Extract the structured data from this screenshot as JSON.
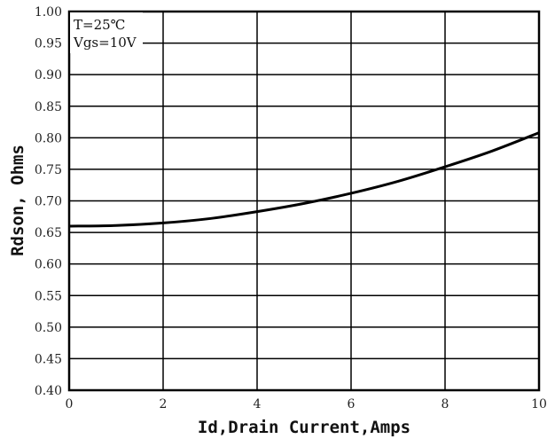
{
  "chart_data": {
    "type": "line",
    "xlabel": "Id,Drain Current,Amps",
    "ylabel": "Rdson, Ohms",
    "xlim": [
      0,
      10
    ],
    "ylim": [
      0.4,
      1.0
    ],
    "x_ticks": [
      "0",
      "2",
      "4",
      "6",
      "8",
      "10"
    ],
    "y_ticks": [
      "1.00",
      "0.95",
      "0.90",
      "0.85",
      "0.80",
      "0.75",
      "0.70",
      "0.65",
      "0.60",
      "0.55",
      "0.50",
      "0.45",
      "0.40"
    ],
    "grid": true,
    "annotations": [
      "T=25℃",
      "Vgs=10V"
    ],
    "series": [
      {
        "x": [
          0,
          1,
          2,
          3,
          4,
          5,
          6,
          7,
          8,
          9,
          10
        ],
        "y": [
          0.66,
          0.661,
          0.665,
          0.672,
          0.683,
          0.696,
          0.712,
          0.731,
          0.754,
          0.779,
          0.808
        ]
      }
    ]
  }
}
